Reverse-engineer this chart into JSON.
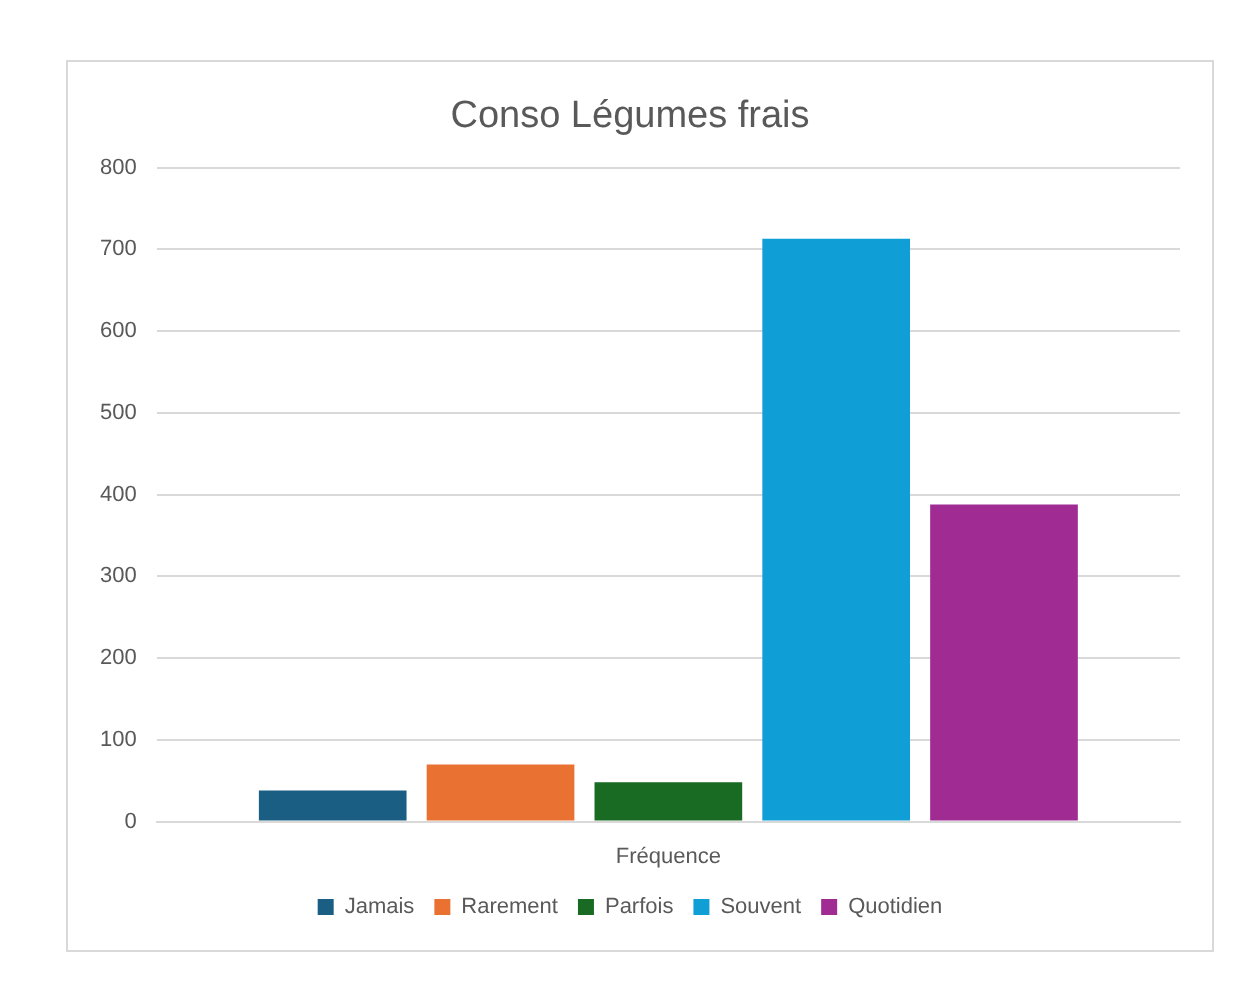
{
  "chart_data": {
    "type": "bar",
    "title": "Conso Légumes frais",
    "categories": [
      "Fréquence"
    ],
    "series": [
      {
        "name": "Jamais",
        "color": "#1b5e84",
        "values": [
          38
        ]
      },
      {
        "name": "Rarement",
        "color": "#e97132",
        "values": [
          70
        ]
      },
      {
        "name": "Parfois",
        "color": "#196b24",
        "values": [
          48
        ]
      },
      {
        "name": "Souvent",
        "color": "#0f9ed5",
        "values": [
          713
        ]
      },
      {
        "name": "Quotidien",
        "color": "#a02b93",
        "values": [
          388
        ]
      }
    ],
    "ylim": [
      0,
      800
    ],
    "yticks": [
      0,
      100,
      200,
      300,
      400,
      500,
      600,
      700,
      800
    ],
    "grid": "y",
    "legend": "bottom"
  }
}
